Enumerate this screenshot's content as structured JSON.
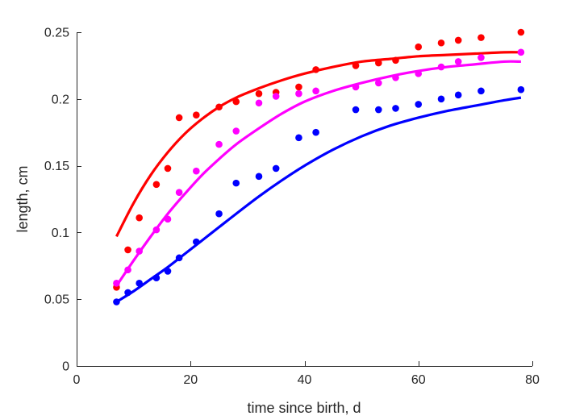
{
  "chart_data": {
    "type": "scatter",
    "title": "",
    "xlabel": "time since birth, d",
    "ylabel": "length, cm",
    "xlim": [
      0,
      80
    ],
    "ylim": [
      0,
      0.25
    ],
    "xticks": [
      0,
      20,
      40,
      60,
      80
    ],
    "yticks": [
      0,
      0.05,
      0.1,
      0.15,
      0.2,
      0.25
    ],
    "ytick_labels": [
      "0",
      "0.05",
      "0.1",
      "0.15",
      "0.2",
      "0.25"
    ],
    "grid": false,
    "legend": false,
    "series": [
      {
        "color": "#ff0000",
        "points": [
          [
            7,
            0.059
          ],
          [
            9,
            0.087
          ],
          [
            11,
            0.111
          ],
          [
            14,
            0.136
          ],
          [
            16,
            0.148
          ],
          [
            18,
            0.186
          ],
          [
            21,
            0.188
          ],
          [
            25,
            0.194
          ],
          [
            28,
            0.198
          ],
          [
            32,
            0.204
          ],
          [
            35,
            0.205
          ],
          [
            39,
            0.209
          ],
          [
            42,
            0.222
          ],
          [
            49,
            0.225
          ],
          [
            53,
            0.227
          ],
          [
            56,
            0.229
          ],
          [
            60,
            0.239
          ],
          [
            64,
            0.242
          ],
          [
            67,
            0.244
          ],
          [
            71,
            0.246
          ],
          [
            78,
            0.25
          ]
        ],
        "fit": [
          [
            7,
            0.097
          ],
          [
            10,
            0.122
          ],
          [
            13,
            0.143
          ],
          [
            16,
            0.16
          ],
          [
            19,
            0.174
          ],
          [
            22,
            0.185
          ],
          [
            25,
            0.194
          ],
          [
            28,
            0.201
          ],
          [
            32,
            0.208
          ],
          [
            36,
            0.214
          ],
          [
            40,
            0.219
          ],
          [
            45,
            0.224
          ],
          [
            50,
            0.228
          ],
          [
            55,
            0.23
          ],
          [
            60,
            0.232
          ],
          [
            65,
            0.233
          ],
          [
            70,
            0.234
          ],
          [
            75,
            0.235
          ],
          [
            78,
            0.235
          ]
        ]
      },
      {
        "color": "#ff00ff",
        "points": [
          [
            7,
            0.062
          ],
          [
            9,
            0.072
          ],
          [
            11,
            0.086
          ],
          [
            14,
            0.102
          ],
          [
            16,
            0.11
          ],
          [
            18,
            0.13
          ],
          [
            21,
            0.146
          ],
          [
            25,
            0.166
          ],
          [
            28,
            0.176
          ],
          [
            32,
            0.197
          ],
          [
            35,
            0.202
          ],
          [
            39,
            0.204
          ],
          [
            42,
            0.206
          ],
          [
            49,
            0.209
          ],
          [
            53,
            0.212
          ],
          [
            56,
            0.216
          ],
          [
            60,
            0.219
          ],
          [
            64,
            0.224
          ],
          [
            67,
            0.228
          ],
          [
            71,
            0.231
          ],
          [
            78,
            0.235
          ]
        ],
        "fit": [
          [
            7,
            0.06
          ],
          [
            10,
            0.079
          ],
          [
            13,
            0.097
          ],
          [
            16,
            0.114
          ],
          [
            19,
            0.129
          ],
          [
            22,
            0.143
          ],
          [
            25,
            0.155
          ],
          [
            28,
            0.166
          ],
          [
            32,
            0.178
          ],
          [
            36,
            0.189
          ],
          [
            40,
            0.198
          ],
          [
            45,
            0.206
          ],
          [
            50,
            0.212
          ],
          [
            55,
            0.217
          ],
          [
            60,
            0.221
          ],
          [
            65,
            0.224
          ],
          [
            70,
            0.226
          ],
          [
            75,
            0.228
          ],
          [
            78,
            0.228
          ]
        ]
      },
      {
        "color": "#0000ff",
        "points": [
          [
            7,
            0.048
          ],
          [
            9,
            0.055
          ],
          [
            11,
            0.062
          ],
          [
            14,
            0.066
          ],
          [
            16,
            0.071
          ],
          [
            18,
            0.081
          ],
          [
            21,
            0.093
          ],
          [
            25,
            0.114
          ],
          [
            28,
            0.137
          ],
          [
            32,
            0.142
          ],
          [
            35,
            0.148
          ],
          [
            39,
            0.171
          ],
          [
            42,
            0.175
          ],
          [
            49,
            0.192
          ],
          [
            53,
            0.192
          ],
          [
            56,
            0.193
          ],
          [
            60,
            0.196
          ],
          [
            64,
            0.2
          ],
          [
            67,
            0.203
          ],
          [
            71,
            0.206
          ],
          [
            78,
            0.207
          ]
        ],
        "fit": [
          [
            7,
            0.048
          ],
          [
            10,
            0.056
          ],
          [
            13,
            0.065
          ],
          [
            16,
            0.074
          ],
          [
            19,
            0.084
          ],
          [
            22,
            0.094
          ],
          [
            25,
            0.104
          ],
          [
            28,
            0.114
          ],
          [
            32,
            0.127
          ],
          [
            36,
            0.139
          ],
          [
            40,
            0.15
          ],
          [
            45,
            0.162
          ],
          [
            50,
            0.172
          ],
          [
            55,
            0.18
          ],
          [
            60,
            0.186
          ],
          [
            65,
            0.191
          ],
          [
            70,
            0.195
          ],
          [
            75,
            0.199
          ],
          [
            78,
            0.201
          ]
        ]
      }
    ]
  }
}
